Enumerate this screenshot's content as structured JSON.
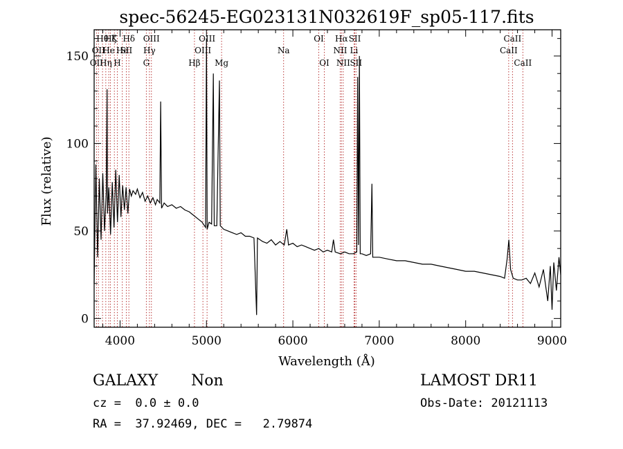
{
  "chart_data": {
    "type": "line",
    "title": "spec-56245-EG023131N032619F_sp05-117.fits",
    "xlabel": "Wavelength (Å)",
    "ylabel": "Flux (relative)",
    "xlim": [
      3700,
      9100
    ],
    "ylim": [
      -5,
      165
    ],
    "xticks": [
      4000,
      5000,
      6000,
      7000,
      8000,
      9000
    ],
    "yticks": [
      0,
      50,
      100,
      150
    ],
    "series": [
      {
        "values": [
          [
            3700,
            20
          ],
          [
            3720,
            88
          ],
          [
            3740,
            35
          ],
          [
            3760,
            80
          ],
          [
            3780,
            45
          ],
          [
            3800,
            83
          ],
          [
            3820,
            50
          ],
          [
            3840,
            72
          ],
          [
            3850,
            131
          ],
          [
            3855,
            60
          ],
          [
            3870,
            75
          ],
          [
            3890,
            48
          ],
          [
            3910,
            78
          ],
          [
            3930,
            52
          ],
          [
            3950,
            85
          ],
          [
            3970,
            55
          ],
          [
            3990,
            82
          ],
          [
            4010,
            58
          ],
          [
            4030,
            76
          ],
          [
            4050,
            62
          ],
          [
            4070,
            75
          ],
          [
            4090,
            60
          ],
          [
            4110,
            74
          ],
          [
            4130,
            70
          ],
          [
            4150,
            73
          ],
          [
            4180,
            71
          ],
          [
            4200,
            74
          ],
          [
            4230,
            69
          ],
          [
            4260,
            72
          ],
          [
            4290,
            67
          ],
          [
            4320,
            70
          ],
          [
            4350,
            66
          ],
          [
            4380,
            69
          ],
          [
            4410,
            65
          ],
          [
            4430,
            68
          ],
          [
            4460,
            66
          ],
          [
            4470,
            124
          ],
          [
            4480,
            63
          ],
          [
            4510,
            66
          ],
          [
            4550,
            64
          ],
          [
            4600,
            65
          ],
          [
            4650,
            63
          ],
          [
            4700,
            64
          ],
          [
            4750,
            62
          ],
          [
            4800,
            61
          ],
          [
            4850,
            59
          ],
          [
            4900,
            57
          ],
          [
            4950,
            55
          ],
          [
            4990,
            52
          ],
          [
            5000,
            160
          ],
          [
            5008,
            51
          ],
          [
            5030,
            55
          ],
          [
            5060,
            54
          ],
          [
            5080,
            140
          ],
          [
            5090,
            53
          ],
          [
            5120,
            53
          ],
          [
            5150,
            136
          ],
          [
            5160,
            53
          ],
          [
            5200,
            51
          ],
          [
            5250,
            50
          ],
          [
            5300,
            49
          ],
          [
            5350,
            48
          ],
          [
            5400,
            49
          ],
          [
            5450,
            47
          ],
          [
            5500,
            47
          ],
          [
            5550,
            46
          ],
          [
            5580,
            2
          ],
          [
            5590,
            46
          ],
          [
            5650,
            44
          ],
          [
            5700,
            43
          ],
          [
            5750,
            45
          ],
          [
            5800,
            42
          ],
          [
            5850,
            44
          ],
          [
            5900,
            42
          ],
          [
            5930,
            51
          ],
          [
            5950,
            42
          ],
          [
            6000,
            43
          ],
          [
            6050,
            41
          ],
          [
            6100,
            42
          ],
          [
            6150,
            41
          ],
          [
            6200,
            40
          ],
          [
            6250,
            39
          ],
          [
            6300,
            40
          ],
          [
            6350,
            38
          ],
          [
            6400,
            39
          ],
          [
            6450,
            38
          ],
          [
            6470,
            45
          ],
          [
            6490,
            38
          ],
          [
            6550,
            37
          ],
          [
            6600,
            38
          ],
          [
            6650,
            37
          ],
          [
            6700,
            37
          ],
          [
            6740,
            38
          ],
          [
            6750,
            138
          ],
          [
            6760,
            42
          ],
          [
            6770,
            150
          ],
          [
            6780,
            37
          ],
          [
            6800,
            37
          ],
          [
            6850,
            36
          ],
          [
            6900,
            37
          ],
          [
            6915,
            77
          ],
          [
            6925,
            35
          ],
          [
            6950,
            35
          ],
          [
            7000,
            35
          ],
          [
            7100,
            34
          ],
          [
            7200,
            33
          ],
          [
            7300,
            33
          ],
          [
            7400,
            32
          ],
          [
            7500,
            31
          ],
          [
            7600,
            31
          ],
          [
            7700,
            30
          ],
          [
            7800,
            29
          ],
          [
            7900,
            28
          ],
          [
            8000,
            27
          ],
          [
            8100,
            27
          ],
          [
            8200,
            26
          ],
          [
            8300,
            25
          ],
          [
            8400,
            24
          ],
          [
            8450,
            23
          ],
          [
            8480,
            34
          ],
          [
            8500,
            45
          ],
          [
            8520,
            28
          ],
          [
            8550,
            23
          ],
          [
            8600,
            22
          ],
          [
            8650,
            22
          ],
          [
            8700,
            23
          ],
          [
            8750,
            20
          ],
          [
            8800,
            26
          ],
          [
            8850,
            18
          ],
          [
            8900,
            28
          ],
          [
            8950,
            10
          ],
          [
            8980,
            30
          ],
          [
            9000,
            5
          ],
          [
            9020,
            32
          ],
          [
            9050,
            16
          ],
          [
            9080,
            35
          ],
          [
            9100,
            25
          ]
        ]
      }
    ],
    "lines": [
      {
        "wl": 3727,
        "label": "OII",
        "row": 2
      },
      {
        "wl": 3750,
        "label": "OII",
        "row": 1
      },
      {
        "wl": 3797,
        "label": "Hθ",
        "row": 0
      },
      {
        "wl": 3835,
        "label": "Hη",
        "row": 2
      },
      {
        "wl": 3869,
        "label": "He",
        "row": 1
      },
      {
        "wl": 3889,
        "label": "Hζ",
        "row": 0
      },
      {
        "wl": 3934,
        "label": "K",
        "row": 0
      },
      {
        "wl": 3968,
        "label": "H",
        "row": 2
      },
      {
        "wl": 4026,
        "label": "He",
        "row": 1
      },
      {
        "wl": 4072,
        "label": "SII",
        "row": 1
      },
      {
        "wl": 4102,
        "label": "Hδ",
        "row": 0
      },
      {
        "wl": 4304,
        "label": "G",
        "row": 2
      },
      {
        "wl": 4340,
        "label": "Hγ",
        "row": 1
      },
      {
        "wl": 4363,
        "label": "OIII",
        "row": 0
      },
      {
        "wl": 4861,
        "label": "Hβ",
        "row": 2
      },
      {
        "wl": 4959,
        "label": "OIII",
        "row": 1
      },
      {
        "wl": 5007,
        "label": "OIII",
        "row": 0
      },
      {
        "wl": 5175,
        "label": "Mg",
        "row": 2
      },
      {
        "wl": 5893,
        "label": "Na",
        "row": 1
      },
      {
        "wl": 6300,
        "label": "OI",
        "row": 0
      },
      {
        "wl": 6364,
        "label": "OI",
        "row": 2
      },
      {
        "wl": 6548,
        "label": "NII",
        "row": 1
      },
      {
        "wl": 6563,
        "label": "Hα",
        "row": 0
      },
      {
        "wl": 6583,
        "label": "NII",
        "row": 2
      },
      {
        "wl": 6708,
        "label": "Li",
        "row": 1
      },
      {
        "wl": 6717,
        "label": "SII",
        "row": 0
      },
      {
        "wl": 6731,
        "label": "SII",
        "row": 2
      },
      {
        "wl": 8498,
        "label": "CaII",
        "row": 1
      },
      {
        "wl": 8542,
        "label": "CaII",
        "row": 0
      },
      {
        "wl": 8662,
        "label": "CaII",
        "row": 2
      }
    ],
    "grid": false,
    "legend": "none"
  },
  "info": {
    "object_class": "GALAXY",
    "object_subclass": "Non",
    "survey": "LAMOST DR11",
    "redshift": "cz =  0.0 ± 0.0",
    "obs_date": "Obs-Date: 20121113",
    "coords": "RA =  37.92469, DEC =   2.79874"
  },
  "colors": {
    "spectrum": "#000000",
    "line_marker": "#b22222",
    "axes": "#000000"
  }
}
